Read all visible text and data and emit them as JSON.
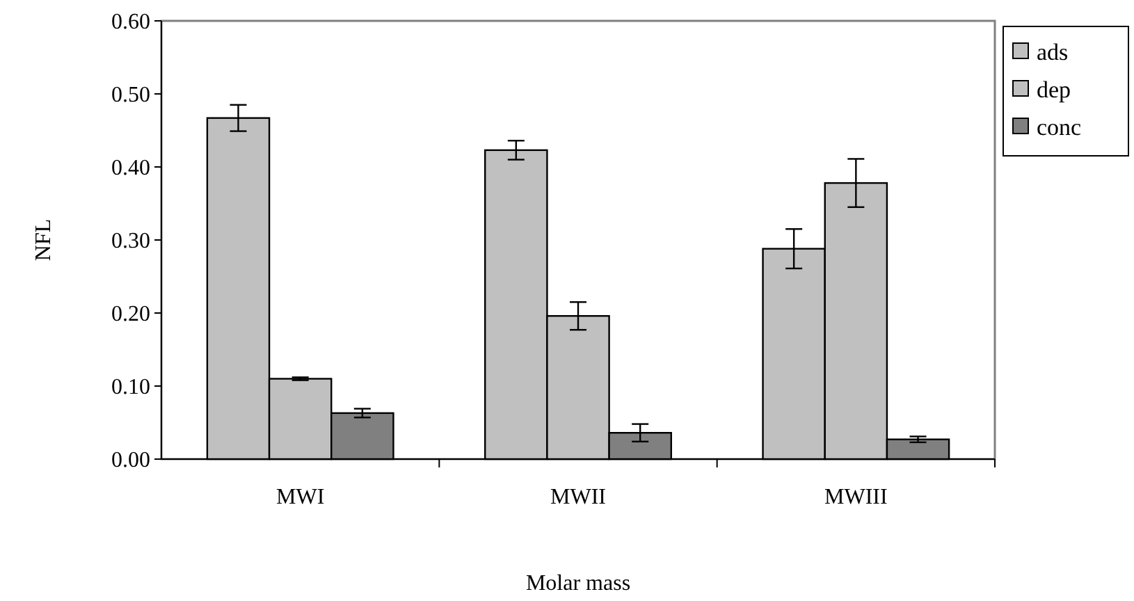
{
  "chart_data": {
    "type": "bar",
    "xlabel": "Molar mass",
    "ylabel": "NFL",
    "categories": [
      "MWI",
      "MWII",
      "MWIII"
    ],
    "series": [
      {
        "name": "ads",
        "color": "#c0c0c0",
        "values": [
          0.467,
          0.423,
          0.288
        ],
        "errors": [
          0.018,
          0.013,
          0.027
        ]
      },
      {
        "name": "dep",
        "color": "#c0c0c0",
        "values": [
          0.11,
          0.196,
          0.378
        ],
        "errors": [
          0.002,
          0.019,
          0.033
        ]
      },
      {
        "name": "conc",
        "color": "#808080",
        "values": [
          0.063,
          0.036,
          0.027
        ],
        "errors": [
          0.006,
          0.012,
          0.004
        ]
      }
    ],
    "ylim": [
      0,
      0.6
    ],
    "yticks": [
      {
        "value": 0,
        "label": "0.00"
      },
      {
        "value": 0.1,
        "label": "0.10"
      },
      {
        "value": 0.2,
        "label": "0.20"
      },
      {
        "value": 0.3,
        "label": "0.30"
      },
      {
        "value": 0.4,
        "label": "0.40"
      },
      {
        "value": 0.5,
        "label": "0.50"
      },
      {
        "value": 0.6,
        "label": "0.60"
      }
    ],
    "grid": false,
    "legend": "top right"
  }
}
